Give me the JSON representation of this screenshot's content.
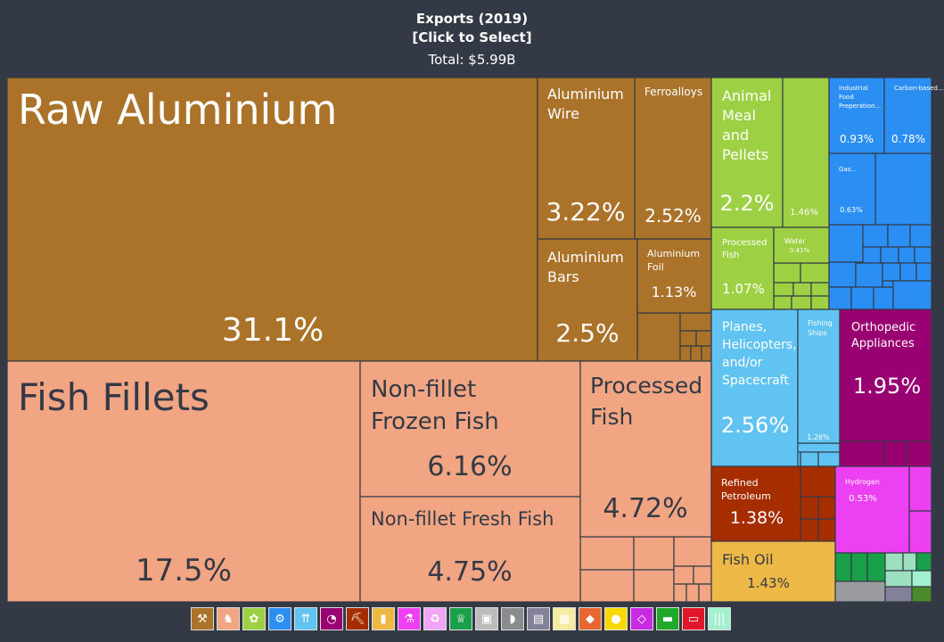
{
  "header": {
    "title": "Exports (2019)",
    "select_label": "[Click to Select]",
    "total": "Total: $5.99B"
  },
  "colors": {
    "metals": "#aa7329",
    "animal": "#f2a583",
    "vegetable": "#9ed043",
    "machines": "#2b8ef3",
    "transport": "#60c3f1",
    "instruments": "#990071",
    "minerals": "#a62d00",
    "foodstuffs": "#edb846",
    "chemicals": "#ed40f2",
    "background": "#333a45",
    "border": "#333a45"
  },
  "chart_data": {
    "type": "treemap",
    "title": "Exports (2019)",
    "total": "$5.99B",
    "items": [
      {
        "label": "Raw Aluminium",
        "share": 31.1,
        "category": "metals"
      },
      {
        "label": "Aluminium Wire",
        "share": 3.22,
        "category": "metals"
      },
      {
        "label": "Ferroalloys",
        "share": 2.52,
        "category": "metals"
      },
      {
        "label": "Aluminium Bars",
        "share": 2.5,
        "category": "metals"
      },
      {
        "label": "Aluminium Foil",
        "share": 1.13,
        "category": "metals"
      },
      {
        "label": "Fish Fillets",
        "share": 17.5,
        "category": "animal"
      },
      {
        "label": "Non-fillet Frozen Fish",
        "share": 6.16,
        "category": "animal"
      },
      {
        "label": "Non-fillet Fresh Fish",
        "share": 4.75,
        "category": "animal"
      },
      {
        "label": "Processed Fish",
        "share": 4.72,
        "category": "animal"
      },
      {
        "label": "Animal Meal and Pellets",
        "share": 2.2,
        "category": "vegetable"
      },
      {
        "label": "",
        "share": 1.46,
        "category": "vegetable"
      },
      {
        "label": "Processed Fish",
        "share": 1.07,
        "category": "vegetable"
      },
      {
        "label": "Water",
        "share": 0.41,
        "category": "vegetable"
      },
      {
        "label": "Industrial Food Preperation...",
        "share": 0.93,
        "category": "machines"
      },
      {
        "label": "Carbon-based...",
        "share": 0.78,
        "category": "machines"
      },
      {
        "label": "Gas...",
        "share": 0.63,
        "category": "machines"
      },
      {
        "label": "Planes, Helicopters, and/or Spacecraft",
        "share": 2.56,
        "category": "transport"
      },
      {
        "label": "Fishing Ships",
        "share": 1.26,
        "category": "transport"
      },
      {
        "label": "Orthopedic Appliances",
        "share": 1.95,
        "category": "instruments"
      },
      {
        "label": "Refined Petroleum",
        "share": 1.38,
        "category": "minerals"
      },
      {
        "label": "Hydrogen",
        "share": 0.53,
        "category": "chemicals"
      },
      {
        "label": "Fish Oil",
        "share": 1.43,
        "category": "foodstuffs"
      }
    ]
  },
  "legend": [
    {
      "name": "metals-icon",
      "color": "#aa7329",
      "glyph": "⚒"
    },
    {
      "name": "animal-icon",
      "color": "#f2a583",
      "glyph": "♞"
    },
    {
      "name": "vegetable-icon",
      "color": "#9ed043",
      "glyph": "✿"
    },
    {
      "name": "machines-icon",
      "color": "#2b8ef3",
      "glyph": "⚙"
    },
    {
      "name": "transport-icon",
      "color": "#60c3f1",
      "glyph": "⇈"
    },
    {
      "name": "instruments-icon",
      "color": "#990071",
      "glyph": "◔"
    },
    {
      "name": "minerals-icon",
      "color": "#a62d00",
      "glyph": "⛏"
    },
    {
      "name": "foodstuffs-icon",
      "color": "#edb846",
      "glyph": "▮"
    },
    {
      "name": "chemicals-icon",
      "color": "#ed40f2",
      "glyph": "⚗"
    },
    {
      "name": "plastics-icon",
      "color": "#f2a5f4",
      "glyph": "♻"
    },
    {
      "name": "textiles-icon",
      "color": "#1aa04a",
      "glyph": "♕"
    },
    {
      "name": "paper-icon",
      "color": "#bcbbbb",
      "glyph": "▣"
    },
    {
      "name": "hides-icon",
      "color": "#8a8b8c",
      "glyph": "◗"
    },
    {
      "name": "art-icon",
      "color": "#838199",
      "glyph": "▤"
    },
    {
      "name": "miscellaneous-icon",
      "color": "#f5eba1",
      "glyph": "▦"
    },
    {
      "name": "wood-icon",
      "color": "#e86630",
      "glyph": "◆"
    },
    {
      "name": "stone-icon",
      "color": "#f7d800",
      "glyph": "●"
    },
    {
      "name": "precious-metals-icon",
      "color": "#c92be2",
      "glyph": "◇"
    },
    {
      "name": "footwear-icon",
      "color": "#20a828",
      "glyph": "▬"
    },
    {
      "name": "weapons-icon",
      "color": "#e0162b",
      "glyph": "▭"
    },
    {
      "name": "services-icon",
      "color": "#a2f0d0",
      "glyph": "|||"
    }
  ]
}
